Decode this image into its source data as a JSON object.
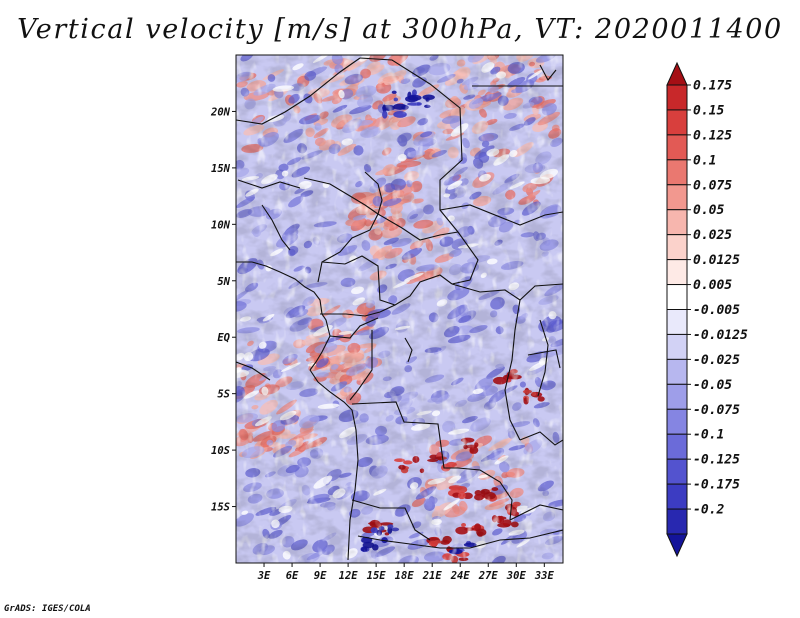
{
  "title": "Vertical velocity [m/s] at 300hPa, VT: 2020011400",
  "footer": "GrADS: IGES/COLA",
  "map": {
    "lon_range": [
      0,
      35
    ],
    "lat_range": [
      -20,
      25
    ],
    "lat_labels": [
      {
        "value": 20,
        "label": "20N"
      },
      {
        "value": 15,
        "label": "15N"
      },
      {
        "value": 10,
        "label": "10N"
      },
      {
        "value": 5,
        "label": "5N"
      },
      {
        "value": 0,
        "label": "EQ"
      },
      {
        "value": -5,
        "label": "5S"
      },
      {
        "value": -10,
        "label": "10S"
      },
      {
        "value": -15,
        "label": "15S"
      }
    ],
    "lon_labels": [
      {
        "value": 3,
        "label": "3E"
      },
      {
        "value": 6,
        "label": "6E"
      },
      {
        "value": 9,
        "label": "9E"
      },
      {
        "value": 12,
        "label": "12E"
      },
      {
        "value": 15,
        "label": "15E"
      },
      {
        "value": 18,
        "label": "18E"
      },
      {
        "value": 21,
        "label": "21E"
      },
      {
        "value": 24,
        "label": "24E"
      },
      {
        "value": 27,
        "label": "27E"
      },
      {
        "value": 30,
        "label": "30E"
      },
      {
        "value": 33,
        "label": "33E"
      }
    ]
  },
  "colorbar": {
    "colors_top_to_bottom": [
      "#a50f15",
      "#c8282a",
      "#d83f3d",
      "#e25a55",
      "#ea7870",
      "#f2988f",
      "#f7b6ae",
      "#fbd2cb",
      "#feeae6",
      "#ffffff",
      "#e9e9fb",
      "#d2d2f5",
      "#b7b7ef",
      "#9e9ee9",
      "#8585e2",
      "#6b6bd9",
      "#5353cf",
      "#3c3cc2",
      "#2828b0",
      "#14149a"
    ],
    "labels": [
      "0.175",
      "0.15",
      "0.125",
      "0.1",
      "0.075",
      "0.05",
      "0.025",
      "0.0125",
      "0.005",
      "-0.005",
      "-0.0125",
      "-0.025",
      "-0.05",
      "-0.075",
      "-0.1",
      "-0.125",
      "-0.175",
      "-0.2"
    ]
  }
}
